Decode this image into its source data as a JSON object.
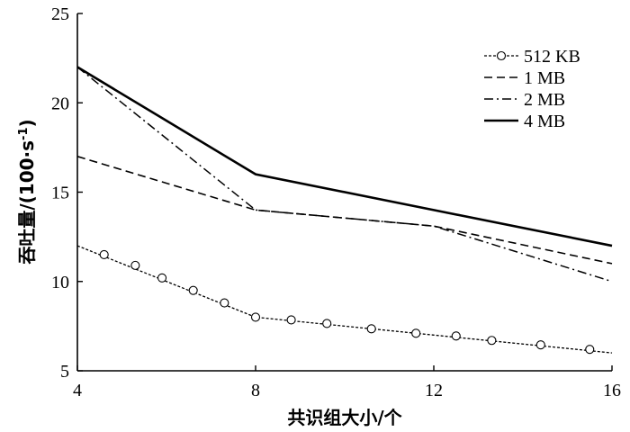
{
  "chart_data": {
    "type": "line",
    "xlabel": "共识组大小/个",
    "ylabel_main": "吞吐量/(100·s",
    "ylabel_sup": "-1",
    "ylabel_end": ")",
    "xlim": [
      4,
      16
    ],
    "ylim": [
      5,
      25
    ],
    "xticks": [
      "4",
      "8",
      "12",
      "16"
    ],
    "yticks": [
      "5",
      "10",
      "15",
      "20",
      "25"
    ],
    "legend_position": "top-right",
    "grid": false,
    "series": [
      {
        "name": "512 KB",
        "style": "dotted-circle",
        "x": [
          4,
          8,
          12,
          16
        ],
        "y": [
          12,
          8,
          7,
          6
        ],
        "marker_x": [
          4.6,
          5.3,
          5.9,
          6.6,
          7.3,
          8,
          8.8,
          9.6,
          10.6,
          11.6,
          12.5,
          13.3,
          14.4,
          15.5
        ],
        "marker_y": [
          11.5,
          10.9,
          10.2,
          9.5,
          8.8,
          8.0,
          7.85,
          7.65,
          7.35,
          7.1,
          6.95,
          6.7,
          6.45,
          6.2
        ]
      },
      {
        "name": "1 MB",
        "style": "dashed",
        "x": [
          4,
          8,
          12,
          16
        ],
        "y": [
          17,
          14,
          13.1,
          11
        ]
      },
      {
        "name": "2 MB",
        "style": "dashdot",
        "x": [
          4,
          8,
          12,
          16
        ],
        "y": [
          22,
          14,
          13.1,
          10
        ]
      },
      {
        "name": "4 MB",
        "style": "solid",
        "x": [
          4,
          8,
          12,
          16
        ],
        "y": [
          22,
          16,
          14,
          12
        ]
      }
    ]
  }
}
